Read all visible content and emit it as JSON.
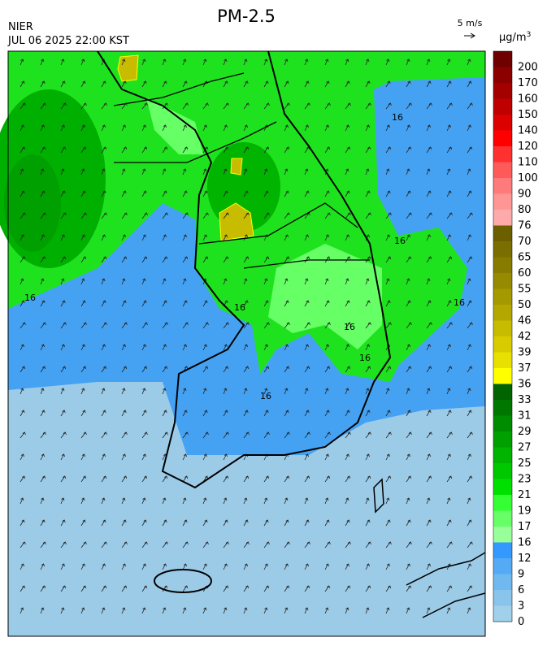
{
  "header": {
    "title": "PM-2.5",
    "source": "NIER",
    "time": "JUL 06 2025 22:00 KST"
  },
  "wind_scale": {
    "label": "5 m/s"
  },
  "colorbar": {
    "unit": "μg/m",
    "unit_exponent": "3",
    "levels": [
      200,
      170,
      160,
      150,
      140,
      120,
      110,
      100,
      90,
      80,
      76,
      70,
      65,
      60,
      55,
      50,
      46,
      42,
      39,
      37,
      36,
      33,
      31,
      29,
      27,
      25,
      23,
      21,
      19,
      17,
      16,
      12,
      9,
      6,
      3,
      0
    ],
    "colors": [
      "#6e0000",
      "#8c0000",
      "#a50000",
      "#be0000",
      "#dc0000",
      "#ff0000",
      "#ff3030",
      "#ff5a5a",
      "#ff7a7a",
      "#ff9696",
      "#ffaaaa",
      "#6b5f00",
      "#7a6e00",
      "#877b00",
      "#968a00",
      "#a59900",
      "#b4a800",
      "#c8bc00",
      "#d8cc00",
      "#e8e000",
      "#ffff00",
      "#006400",
      "#007800",
      "#008c00",
      "#00a000",
      "#00b400",
      "#00c800",
      "#00e000",
      "#33ff33",
      "#66ff66",
      "#99ff99",
      "#3399ff",
      "#55aaf5",
      "#70b8f0",
      "#88c4ec",
      "#a0d0ea"
    ]
  },
  "contour_labels": [
    16,
    16,
    16,
    16,
    16,
    16,
    16,
    16
  ]
}
